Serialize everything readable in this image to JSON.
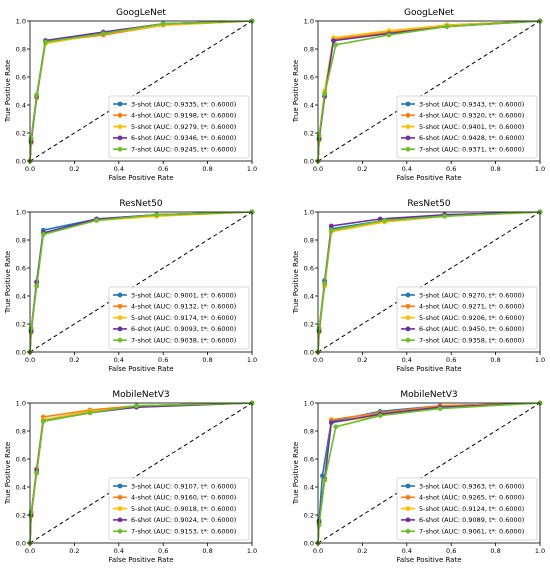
{
  "colors": {
    "series": [
      "#1f77b4",
      "#ff7f0e",
      "#ffbf00",
      "#6a329f",
      "#6abf2a"
    ],
    "diagonal": "#000000"
  },
  "chart_data": [
    {
      "type": "line",
      "title": "GoogLeNet",
      "xlabel": "False Positive Rate",
      "ylabel": "True Positive Rate",
      "xlim": [
        0,
        1
      ],
      "ylim": [
        0,
        1
      ],
      "xticks": [
        "0.0",
        "0.2",
        "0.4",
        "0.6",
        "0.8",
        "1.0"
      ],
      "yticks": [
        "0.0",
        "0.2",
        "0.4",
        "0.6",
        "0.8",
        "1.0"
      ],
      "legend": "lower-right",
      "series": [
        {
          "name": "3-shot (AUC: 0.9335, t*: 0.6000)",
          "x": [
            0,
            0.005,
            0.03,
            0.07,
            0.33,
            0.6,
            1
          ],
          "y": [
            0,
            0.15,
            0.47,
            0.86,
            0.92,
            0.98,
            1
          ]
        },
        {
          "name": "4-shot (AUC: 0.9198, t*: 0.6000)",
          "x": [
            0,
            0.005,
            0.03,
            0.07,
            0.33,
            0.6,
            1
          ],
          "y": [
            0,
            0.13,
            0.45,
            0.85,
            0.9,
            0.97,
            1
          ]
        },
        {
          "name": "5-shot (AUC: 0.9279, t*: 0.6000)",
          "x": [
            0,
            0.005,
            0.03,
            0.07,
            0.33,
            0.6,
            1
          ],
          "y": [
            0,
            0.15,
            0.46,
            0.84,
            0.91,
            0.97,
            1
          ]
        },
        {
          "name": "6-shot (AUC: 0.9346, t*: 0.6000)",
          "x": [
            0,
            0.005,
            0.03,
            0.07,
            0.33,
            0.6,
            1
          ],
          "y": [
            0,
            0.14,
            0.46,
            0.86,
            0.92,
            0.98,
            1
          ]
        },
        {
          "name": "7-shot (AUC: 0.9245, t*: 0.6000)",
          "x": [
            0,
            0.005,
            0.03,
            0.07,
            0.33,
            0.6,
            1
          ],
          "y": [
            0,
            0.16,
            0.47,
            0.85,
            0.91,
            0.98,
            1
          ]
        }
      ]
    },
    {
      "type": "line",
      "title": "GoogLeNet",
      "xlabel": "False Positive Rate",
      "ylabel": "True Positive Rate",
      "xlim": [
        0,
        1
      ],
      "ylim": [
        0,
        1
      ],
      "xticks": [
        "0.0",
        "0.2",
        "0.4",
        "0.6",
        "0.8",
        "1.0"
      ],
      "yticks": [
        "0.0",
        "0.2",
        "0.4",
        "0.6",
        "0.8",
        "1.0"
      ],
      "legend": "lower-right",
      "series": [
        {
          "name": "3-shot (AUC: 0.9343, t*: 0.6000)",
          "x": [
            0,
            0.005,
            0.03,
            0.07,
            0.32,
            0.58,
            1
          ],
          "y": [
            0,
            0.16,
            0.47,
            0.86,
            0.92,
            0.97,
            1
          ]
        },
        {
          "name": "4-shot (AUC: 0.9320, t*: 0.6000)",
          "x": [
            0,
            0.005,
            0.03,
            0.07,
            0.32,
            0.58,
            1
          ],
          "y": [
            0,
            0.15,
            0.46,
            0.87,
            0.92,
            0.97,
            1
          ]
        },
        {
          "name": "5-shot (AUC: 0.9401, t*: 0.6000)",
          "x": [
            0,
            0.005,
            0.03,
            0.07,
            0.32,
            0.58,
            1
          ],
          "y": [
            0,
            0.17,
            0.5,
            0.88,
            0.93,
            0.97,
            1
          ]
        },
        {
          "name": "6-shot (AUC: 0.9428, t*: 0.6000)",
          "x": [
            0,
            0.005,
            0.03,
            0.07,
            0.32,
            0.58,
            1
          ],
          "y": [
            0,
            0.16,
            0.46,
            0.86,
            0.91,
            0.96,
            1
          ]
        },
        {
          "name": "7-shot (AUC: 0.9371, t*: 0.6000)",
          "x": [
            0,
            0.005,
            0.03,
            0.08,
            0.32,
            0.58,
            1
          ],
          "y": [
            0,
            0.18,
            0.48,
            0.83,
            0.9,
            0.96,
            1
          ]
        }
      ]
    },
    {
      "type": "line",
      "title": "ResNet50",
      "xlabel": "False Positive Rate",
      "ylabel": "True Positive Rate",
      "xlim": [
        0,
        1
      ],
      "ylim": [
        0,
        1
      ],
      "xticks": [
        "0.0",
        "0.2",
        "0.4",
        "0.6",
        "0.8",
        "1.0"
      ],
      "yticks": [
        "0.0",
        "0.2",
        "0.4",
        "0.6",
        "0.8",
        "1.0"
      ],
      "legend": "lower-right",
      "series": [
        {
          "name": "3-shot (AUC: 0.9001, t*: 0.6000)",
          "x": [
            0,
            0.005,
            0.03,
            0.06,
            0.3,
            0.57,
            1
          ],
          "y": [
            0,
            0.16,
            0.5,
            0.87,
            0.95,
            0.98,
            1
          ]
        },
        {
          "name": "4-shot (AUC: 0.9132, t*: 0.6000)",
          "x": [
            0,
            0.005,
            0.03,
            0.06,
            0.3,
            0.57,
            1
          ],
          "y": [
            0,
            0.14,
            0.48,
            0.85,
            0.94,
            0.98,
            1
          ]
        },
        {
          "name": "5-shot (AUC: 0.9174, t*: 0.6000)",
          "x": [
            0,
            0.005,
            0.03,
            0.06,
            0.3,
            0.57,
            1
          ],
          "y": [
            0,
            0.15,
            0.48,
            0.84,
            0.94,
            0.97,
            1
          ]
        },
        {
          "name": "6-shot (AUC: 0.9093, t*: 0.6000)",
          "x": [
            0,
            0.005,
            0.03,
            0.06,
            0.3,
            0.57,
            1
          ],
          "y": [
            0,
            0.15,
            0.5,
            0.85,
            0.95,
            0.98,
            1
          ]
        },
        {
          "name": "7-shot (AUC: 0.9038, t*: 0.6000)",
          "x": [
            0,
            0.005,
            0.03,
            0.06,
            0.3,
            0.57,
            1
          ],
          "y": [
            0,
            0.17,
            0.47,
            0.84,
            0.94,
            0.98,
            1
          ]
        }
      ]
    },
    {
      "type": "line",
      "title": "ResNet50",
      "xlabel": "False Positive Rate",
      "ylabel": "True Positive Rate",
      "xlim": [
        0,
        1
      ],
      "ylim": [
        0,
        1
      ],
      "xticks": [
        "0.0",
        "0.2",
        "0.4",
        "0.6",
        "0.8",
        "1.0"
      ],
      "yticks": [
        "0.0",
        "0.2",
        "0.4",
        "0.6",
        "0.8",
        "1.0"
      ],
      "legend": "lower-right",
      "series": [
        {
          "name": "3-shot (AUC: 0.9270, t*: 0.6000)",
          "x": [
            0,
            0.005,
            0.03,
            0.06,
            0.3,
            0.57,
            1
          ],
          "y": [
            0,
            0.16,
            0.51,
            0.88,
            0.94,
            0.98,
            1
          ]
        },
        {
          "name": "4-shot (AUC: 0.9271, t*: 0.6000)",
          "x": [
            0,
            0.005,
            0.03,
            0.06,
            0.3,
            0.57,
            1
          ],
          "y": [
            0,
            0.15,
            0.48,
            0.86,
            0.93,
            0.97,
            1
          ]
        },
        {
          "name": "5-shot (AUC: 0.9206, t*: 0.6000)",
          "x": [
            0,
            0.005,
            0.03,
            0.06,
            0.3,
            0.57,
            1
          ],
          "y": [
            0,
            0.14,
            0.47,
            0.86,
            0.93,
            0.97,
            1
          ]
        },
        {
          "name": "6-shot (AUC: 0.9450, t*: 0.6000)",
          "x": [
            0,
            0.005,
            0.03,
            0.06,
            0.28,
            0.57,
            1
          ],
          "y": [
            0,
            0.15,
            0.5,
            0.9,
            0.95,
            0.98,
            1
          ]
        },
        {
          "name": "7-shot (AUC: 0.9358, t*: 0.6000)",
          "x": [
            0,
            0.005,
            0.03,
            0.06,
            0.3,
            0.57,
            1
          ],
          "y": [
            0,
            0.17,
            0.49,
            0.87,
            0.94,
            0.97,
            1
          ]
        }
      ]
    },
    {
      "type": "line",
      "title": "MobileNetV3",
      "xlabel": "False Positive Rate",
      "ylabel": "True Positive Rate",
      "xlim": [
        0,
        1
      ],
      "ylim": [
        0,
        1
      ],
      "xticks": [
        "0.0",
        "0.2",
        "0.4",
        "0.6",
        "0.8",
        "1.0"
      ],
      "yticks": [
        "0.0",
        "0.2",
        "0.4",
        "0.6",
        "0.8",
        "1.0"
      ],
      "legend": "lower-right",
      "series": [
        {
          "name": "3-shot (AUC: 0.9107, t*: 0.6000)",
          "x": [
            0,
            0.005,
            0.03,
            0.06,
            0.27,
            0.48,
            1
          ],
          "y": [
            0,
            0.2,
            0.52,
            0.88,
            0.94,
            0.98,
            1
          ]
        },
        {
          "name": "4-shot (AUC: 0.9160, t*: 0.6000)",
          "x": [
            0,
            0.005,
            0.03,
            0.06,
            0.27,
            0.48,
            1
          ],
          "y": [
            0,
            0.21,
            0.53,
            0.9,
            0.95,
            0.98,
            1
          ]
        },
        {
          "name": "5-shot (AUC: 0.9018, t*: 0.6000)",
          "x": [
            0,
            0.005,
            0.03,
            0.06,
            0.27,
            0.48,
            1
          ],
          "y": [
            0,
            0.19,
            0.5,
            0.88,
            0.94,
            0.97,
            1
          ]
        },
        {
          "name": "6-shot (AUC: 0.9024, t*: 0.6000)",
          "x": [
            0,
            0.005,
            0.03,
            0.06,
            0.27,
            0.48,
            1
          ],
          "y": [
            0,
            0.2,
            0.52,
            0.87,
            0.93,
            0.97,
            1
          ]
        },
        {
          "name": "7-shot (AUC: 0.9153, t*: 0.6000)",
          "x": [
            0,
            0.005,
            0.03,
            0.06,
            0.27,
            0.48,
            1
          ],
          "y": [
            0,
            0.22,
            0.5,
            0.87,
            0.93,
            0.98,
            1
          ]
        }
      ]
    },
    {
      "type": "line",
      "title": "MobileNetV3",
      "xlabel": "False Positive Rate",
      "ylabel": "True Positive Rate",
      "xlim": [
        0,
        1
      ],
      "ylim": [
        0,
        1
      ],
      "xticks": [
        "0.0",
        "0.2",
        "0.4",
        "0.6",
        "0.8",
        "1.0"
      ],
      "yticks": [
        "0.0",
        "0.2",
        "0.4",
        "0.6",
        "0.8",
        "1.0"
      ],
      "legend": "lower-right",
      "series": [
        {
          "name": "3-shot (AUC: 0.9363, t*: 0.6000)",
          "x": [
            0,
            0.005,
            0.02,
            0.06,
            0.28,
            0.55,
            1
          ],
          "y": [
            0,
            0.16,
            0.48,
            0.87,
            0.94,
            0.98,
            1
          ]
        },
        {
          "name": "4-shot (AUC: 0.9265, t*: 0.6000)",
          "x": [
            0,
            0.005,
            0.03,
            0.06,
            0.28,
            0.55,
            1
          ],
          "y": [
            0,
            0.15,
            0.45,
            0.88,
            0.93,
            0.98,
            1
          ]
        },
        {
          "name": "5-shot (AUC: 0.9124, t*: 0.6000)",
          "x": [
            0,
            0.005,
            0.03,
            0.06,
            0.28,
            0.55,
            1
          ],
          "y": [
            0,
            0.14,
            0.46,
            0.86,
            0.91,
            0.97,
            1
          ]
        },
        {
          "name": "6-shot (AUC: 0.9089, t*: 0.6000)",
          "x": [
            0,
            0.005,
            0.03,
            0.06,
            0.28,
            0.55,
            1
          ],
          "y": [
            0,
            0.15,
            0.46,
            0.86,
            0.92,
            0.97,
            1
          ]
        },
        {
          "name": "7-shot (AUC: 0.9061, t*: 0.6000)",
          "x": [
            0,
            0.005,
            0.03,
            0.08,
            0.28,
            0.55,
            1
          ],
          "y": [
            0,
            0.13,
            0.45,
            0.83,
            0.91,
            0.96,
            1
          ]
        }
      ]
    }
  ]
}
